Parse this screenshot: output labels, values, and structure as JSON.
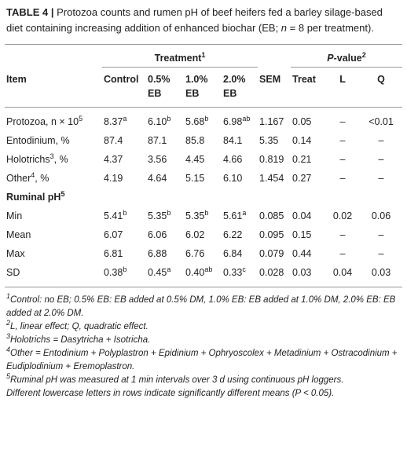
{
  "caption": {
    "label": "TABLE 4 |",
    "text": "Protozoa counts and rumen pH of beef heifers fed a barley silage-based diet containing increasing addition of enhanced biochar (EB; ",
    "italic": "n",
    "after": " = 8 per treatment)."
  },
  "table": {
    "groups": {
      "treatment": {
        "text": "Treatment",
        "sup": "1"
      },
      "pvalue": {
        "italic": "P",
        "text": "-value",
        "sup": "2"
      }
    },
    "columns": [
      "Item",
      "Control",
      "0.5% EB",
      "1.0% EB",
      "2.0% EB",
      "SEM",
      "Treat",
      "L",
      "Q"
    ],
    "rows": [
      [
        {
          "text": "Protozoa, n × 10",
          "sup": "5"
        },
        {
          "text": "8.37",
          "sup": "a"
        },
        {
          "text": "6.10",
          "sup": "b"
        },
        {
          "text": "5.68",
          "sup": "b"
        },
        {
          "text": "6.98",
          "sup": "ab"
        },
        "1.167",
        "0.05",
        "–",
        "<0.01"
      ],
      [
        "Entodinium, %",
        "87.4",
        "87.1",
        "85.8",
        "84.1",
        "5.35",
        "0.14",
        "–",
        "–"
      ],
      [
        {
          "text": "Holotrichs",
          "sup": "3",
          "after": ", %"
        },
        "4.37",
        "3.56",
        "4.45",
        "4.66",
        "0.819",
        "0.21",
        "–",
        "–"
      ],
      [
        {
          "text": "Other",
          "sup": "4",
          "after": ", %"
        },
        "4.19",
        "4.64",
        "5.15",
        "6.10",
        "1.454",
        "0.27",
        "–",
        "–"
      ],
      [
        {
          "text": "Ruminal pH",
          "sup": "5"
        }
      ],
      [
        "Min",
        {
          "text": "5.41",
          "sup": "b"
        },
        {
          "text": "5.35",
          "sup": "b"
        },
        {
          "text": "5.35",
          "sup": "b"
        },
        {
          "text": "5.61",
          "sup": "a"
        },
        "0.085",
        "0.04",
        "0.02",
        "0.06"
      ],
      [
        "Mean",
        "6.07",
        "6.06",
        "6.02",
        "6.22",
        "0.095",
        "0.15",
        "–",
        "–"
      ],
      [
        "Max",
        "6.81",
        "6.88",
        "6.76",
        "6.84",
        "0.079",
        "0.44",
        "–",
        "–"
      ],
      [
        "SD",
        {
          "text": "0.38",
          "sup": "b"
        },
        {
          "text": "0.45",
          "sup": "a"
        },
        {
          "text": "0.40",
          "sup": "ab"
        },
        {
          "text": "0.33",
          "sup": "c"
        },
        "0.028",
        "0.03",
        "0.04",
        "0.03"
      ]
    ]
  },
  "footnotes": [
    {
      "mark": "1",
      "lines": [
        "Control: no EB; 0.5% EB: EB added at 0.5% DM, 1.0% EB: EB added at 1.0% DM, 2.0% EB: EB added at 2.0% DM."
      ]
    },
    {
      "mark": "2",
      "lines": [
        "L, linear effect; Q, quadratic effect."
      ]
    },
    {
      "mark": "3",
      "lines": [
        "Holotrichs = Dasytricha + Isotricha."
      ]
    },
    {
      "mark": "4",
      "lines": [
        "Other = Entodinium + Polyplastron + Epidinium + Ophryoscolex + Metadinium + Ostracodinium + Eudiplodinium + Eremoplastron."
      ]
    },
    {
      "mark": "5",
      "lines": [
        "Ruminal pH was measured at 1 min intervals over 3 d using continuous pH loggers.",
        "Different lowercase letters in rows indicate significantly different means (P < 0.05)."
      ]
    }
  ]
}
